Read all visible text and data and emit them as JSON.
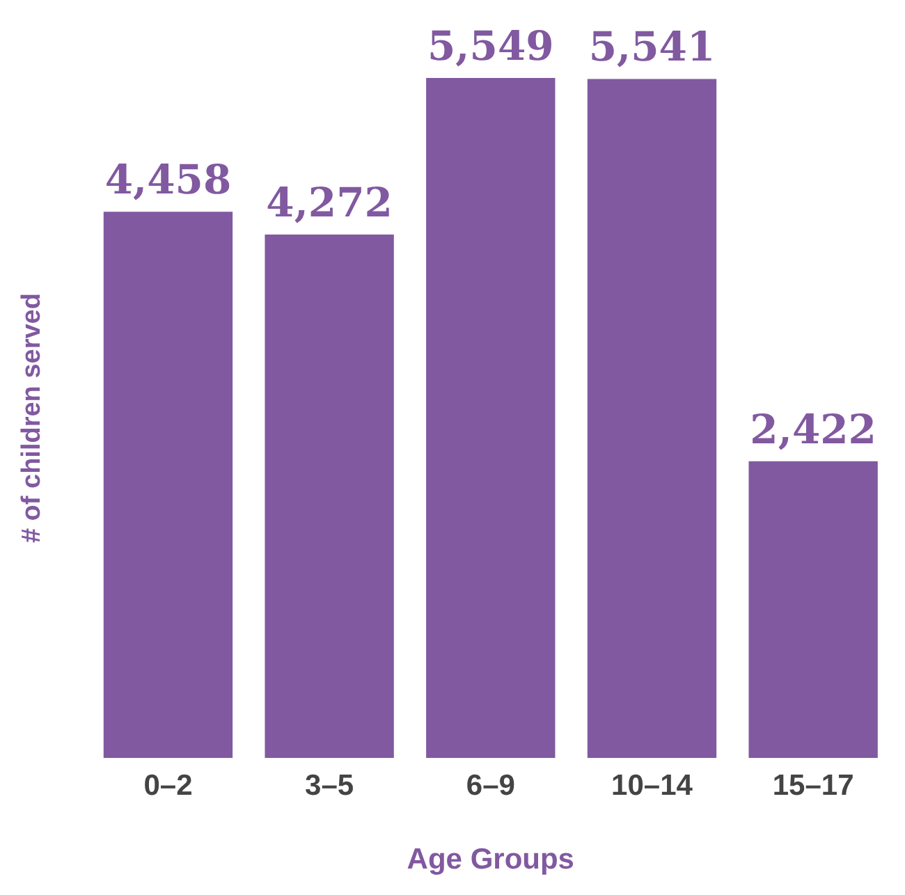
{
  "chart_data": {
    "type": "bar",
    "xlabel": "Age Groups",
    "ylabel": "# of children served",
    "categories": [
      "0–2",
      "3–5",
      "6–9",
      "10–14",
      "15–17"
    ],
    "values": [
      4458,
      4272,
      5549,
      5541,
      2422
    ],
    "value_labels": [
      "4,458",
      "4,272",
      "5,549",
      "5,541",
      "2,422"
    ],
    "color": "#8159a0",
    "grid": false,
    "legend": false
  }
}
